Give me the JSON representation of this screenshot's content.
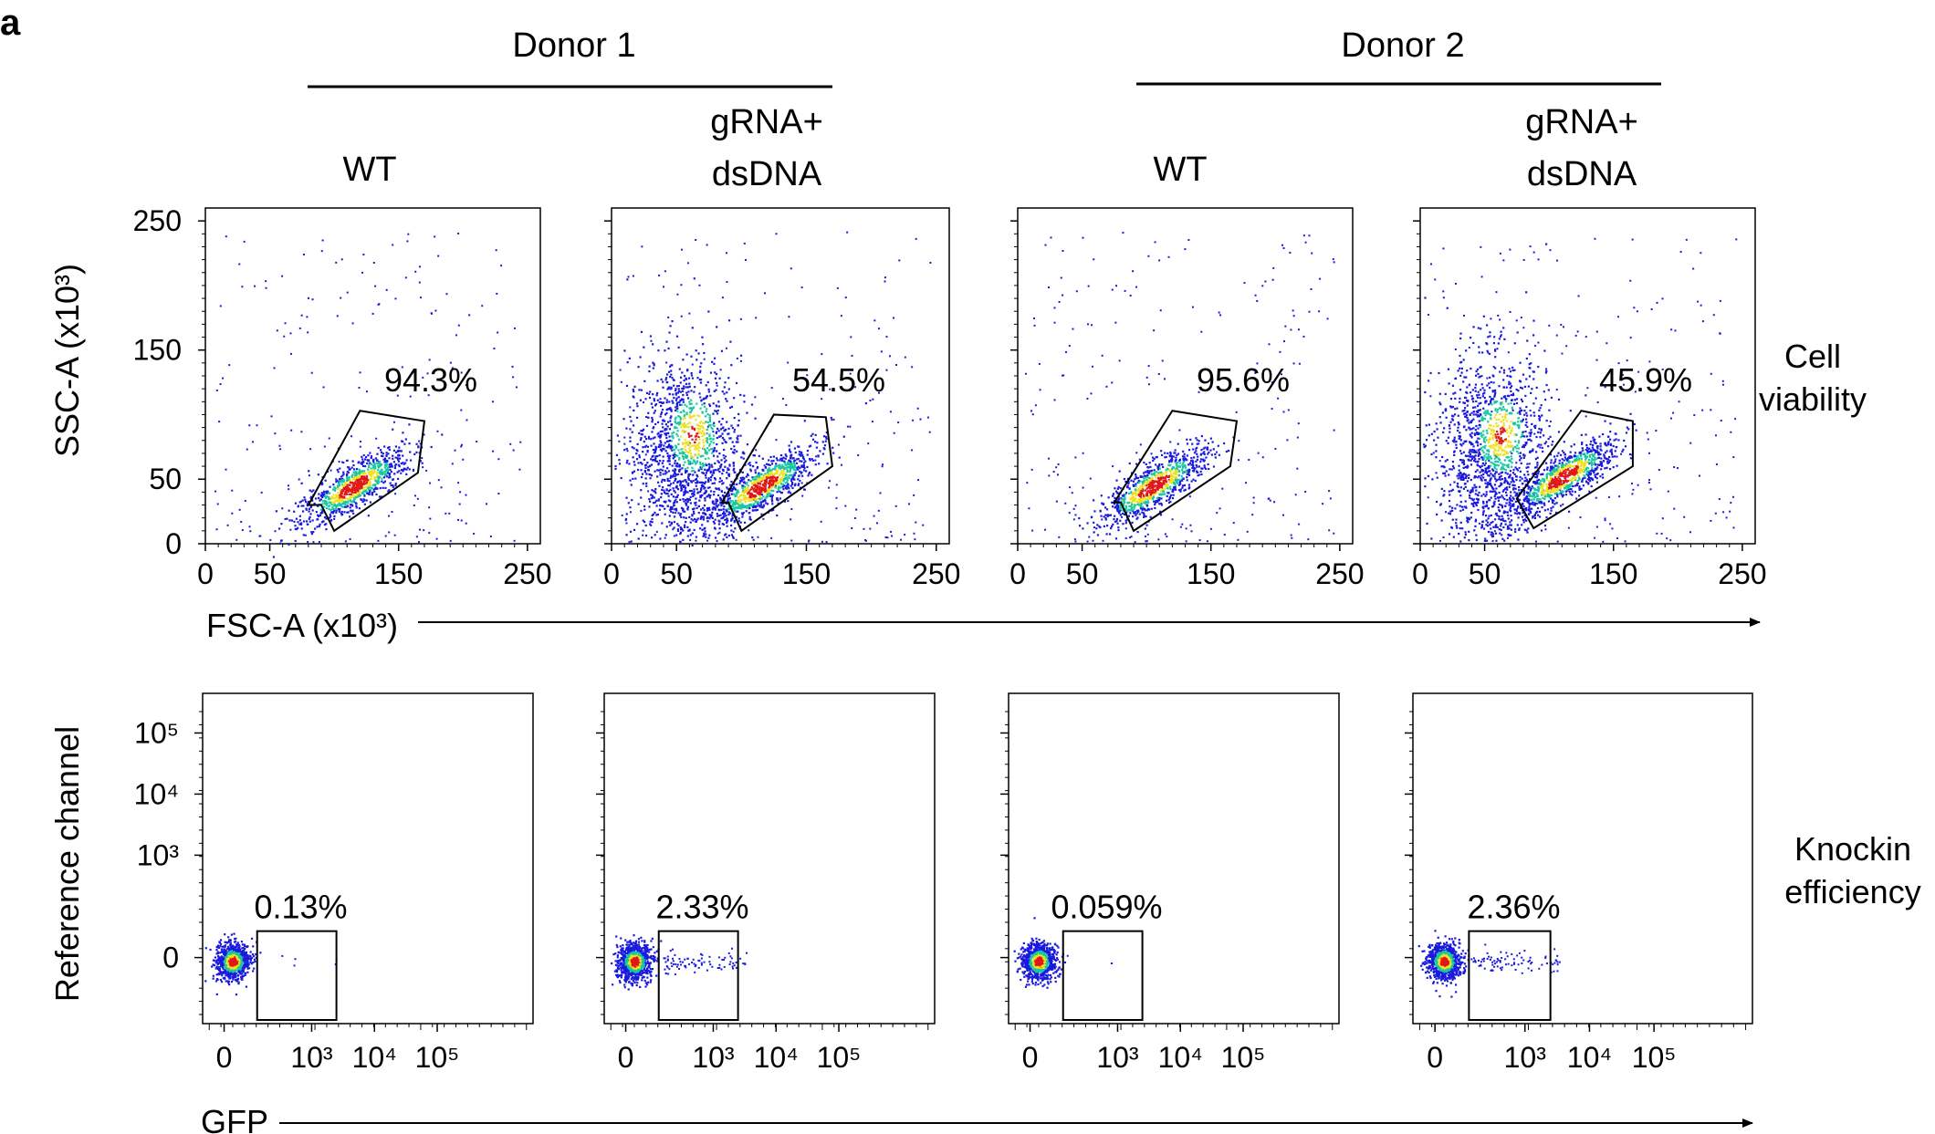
{
  "panel_label": "a",
  "donors": [
    "Donor 1",
    "Donor 2"
  ],
  "conditions": [
    [
      "WT"
    ],
    [
      "gRNA+",
      "dsDNA"
    ],
    [
      "WT"
    ],
    [
      "gRNA+",
      "dsDNA"
    ]
  ],
  "row_labels": [
    {
      "lines": [
        "Cell",
        "viability"
      ]
    },
    {
      "lines": [
        "Knockin",
        "efficiency"
      ]
    }
  ],
  "colors": {
    "low": "#1a1adc",
    "mid": "#18c8a0",
    "high": "#f0e020",
    "peak": "#e01818"
  },
  "chart_data": [
    {
      "type": "scatter",
      "name": "cell-viability-row",
      "title": "Cell viability",
      "xlabel": "FSC-A (x10³)",
      "ylabel": "SSC-A (x10³)",
      "xlim": [
        0,
        260
      ],
      "ylim": [
        0,
        260
      ],
      "xticks": [
        "0",
        "50",
        "150",
        "250"
      ],
      "xtick_values": [
        0,
        50,
        150,
        250
      ],
      "yticks": [
        "0",
        "50",
        "150",
        "250"
      ],
      "ytick_values": [
        0,
        50,
        150,
        250
      ],
      "panels": [
        {
          "label": "94.3%",
          "gate_percent": 94.3,
          "gate": [
            [
              90,
              30
            ],
            [
              100,
              10
            ],
            [
              165,
              55
            ],
            [
              170,
              95
            ],
            [
              120,
              103
            ],
            [
              80,
              30
            ]
          ],
          "live_center": [
            115,
            45
          ],
          "debris": 0.0,
          "live_cells": 1.0
        },
        {
          "label": "54.5%",
          "gate_percent": 54.5,
          "gate": [
            [
              90,
              32
            ],
            [
              100,
              10
            ],
            [
              170,
              60
            ],
            [
              165,
              98
            ],
            [
              125,
              100
            ],
            [
              85,
              32
            ]
          ],
          "live_center": [
            115,
            45
          ],
          "debris": 1.0,
          "live_cells": 1.0
        },
        {
          "label": "95.6%",
          "gate_percent": 95.6,
          "gate": [
            [
              80,
              32
            ],
            [
              90,
              10
            ],
            [
              165,
              60
            ],
            [
              170,
              95
            ],
            [
              120,
              103
            ],
            [
              75,
              32
            ]
          ],
          "live_center": [
            105,
            45
          ],
          "debris": 0.0,
          "live_cells": 1.0
        },
        {
          "label": "45.9%",
          "gate_percent": 45.9,
          "gate": [
            [
              75,
              35
            ],
            [
              88,
              12
            ],
            [
              165,
              60
            ],
            [
              165,
              95
            ],
            [
              125,
              103
            ],
            [
              75,
              35
            ]
          ],
          "live_center": [
            110,
            52
          ],
          "debris": 1.0,
          "live_cells": 1.0
        }
      ]
    },
    {
      "type": "scatter",
      "name": "knockin-efficiency-row",
      "title": "Knockin efficiency",
      "xlabel": "GFP",
      "ylabel": "Reference channel",
      "xscale": "biexponential",
      "yscale": "biexponential",
      "xticks": [
        "0",
        "10³",
        "10⁴",
        "10⁵"
      ],
      "xtick_values": [
        0,
        1000,
        10000,
        100000
      ],
      "yticks": [
        "0",
        "10³",
        "10⁴",
        "10⁵"
      ],
      "ytick_values": [
        0,
        1000,
        10000,
        100000
      ],
      "panels": [
        {
          "label": "0.13%",
          "gate_percent": 0.13
        },
        {
          "label": "2.33%",
          "gate_percent": 2.33
        },
        {
          "label": "0.059%",
          "gate_percent": 0.059
        },
        {
          "label": "2.36%",
          "gate_percent": 2.36
        }
      ]
    }
  ]
}
